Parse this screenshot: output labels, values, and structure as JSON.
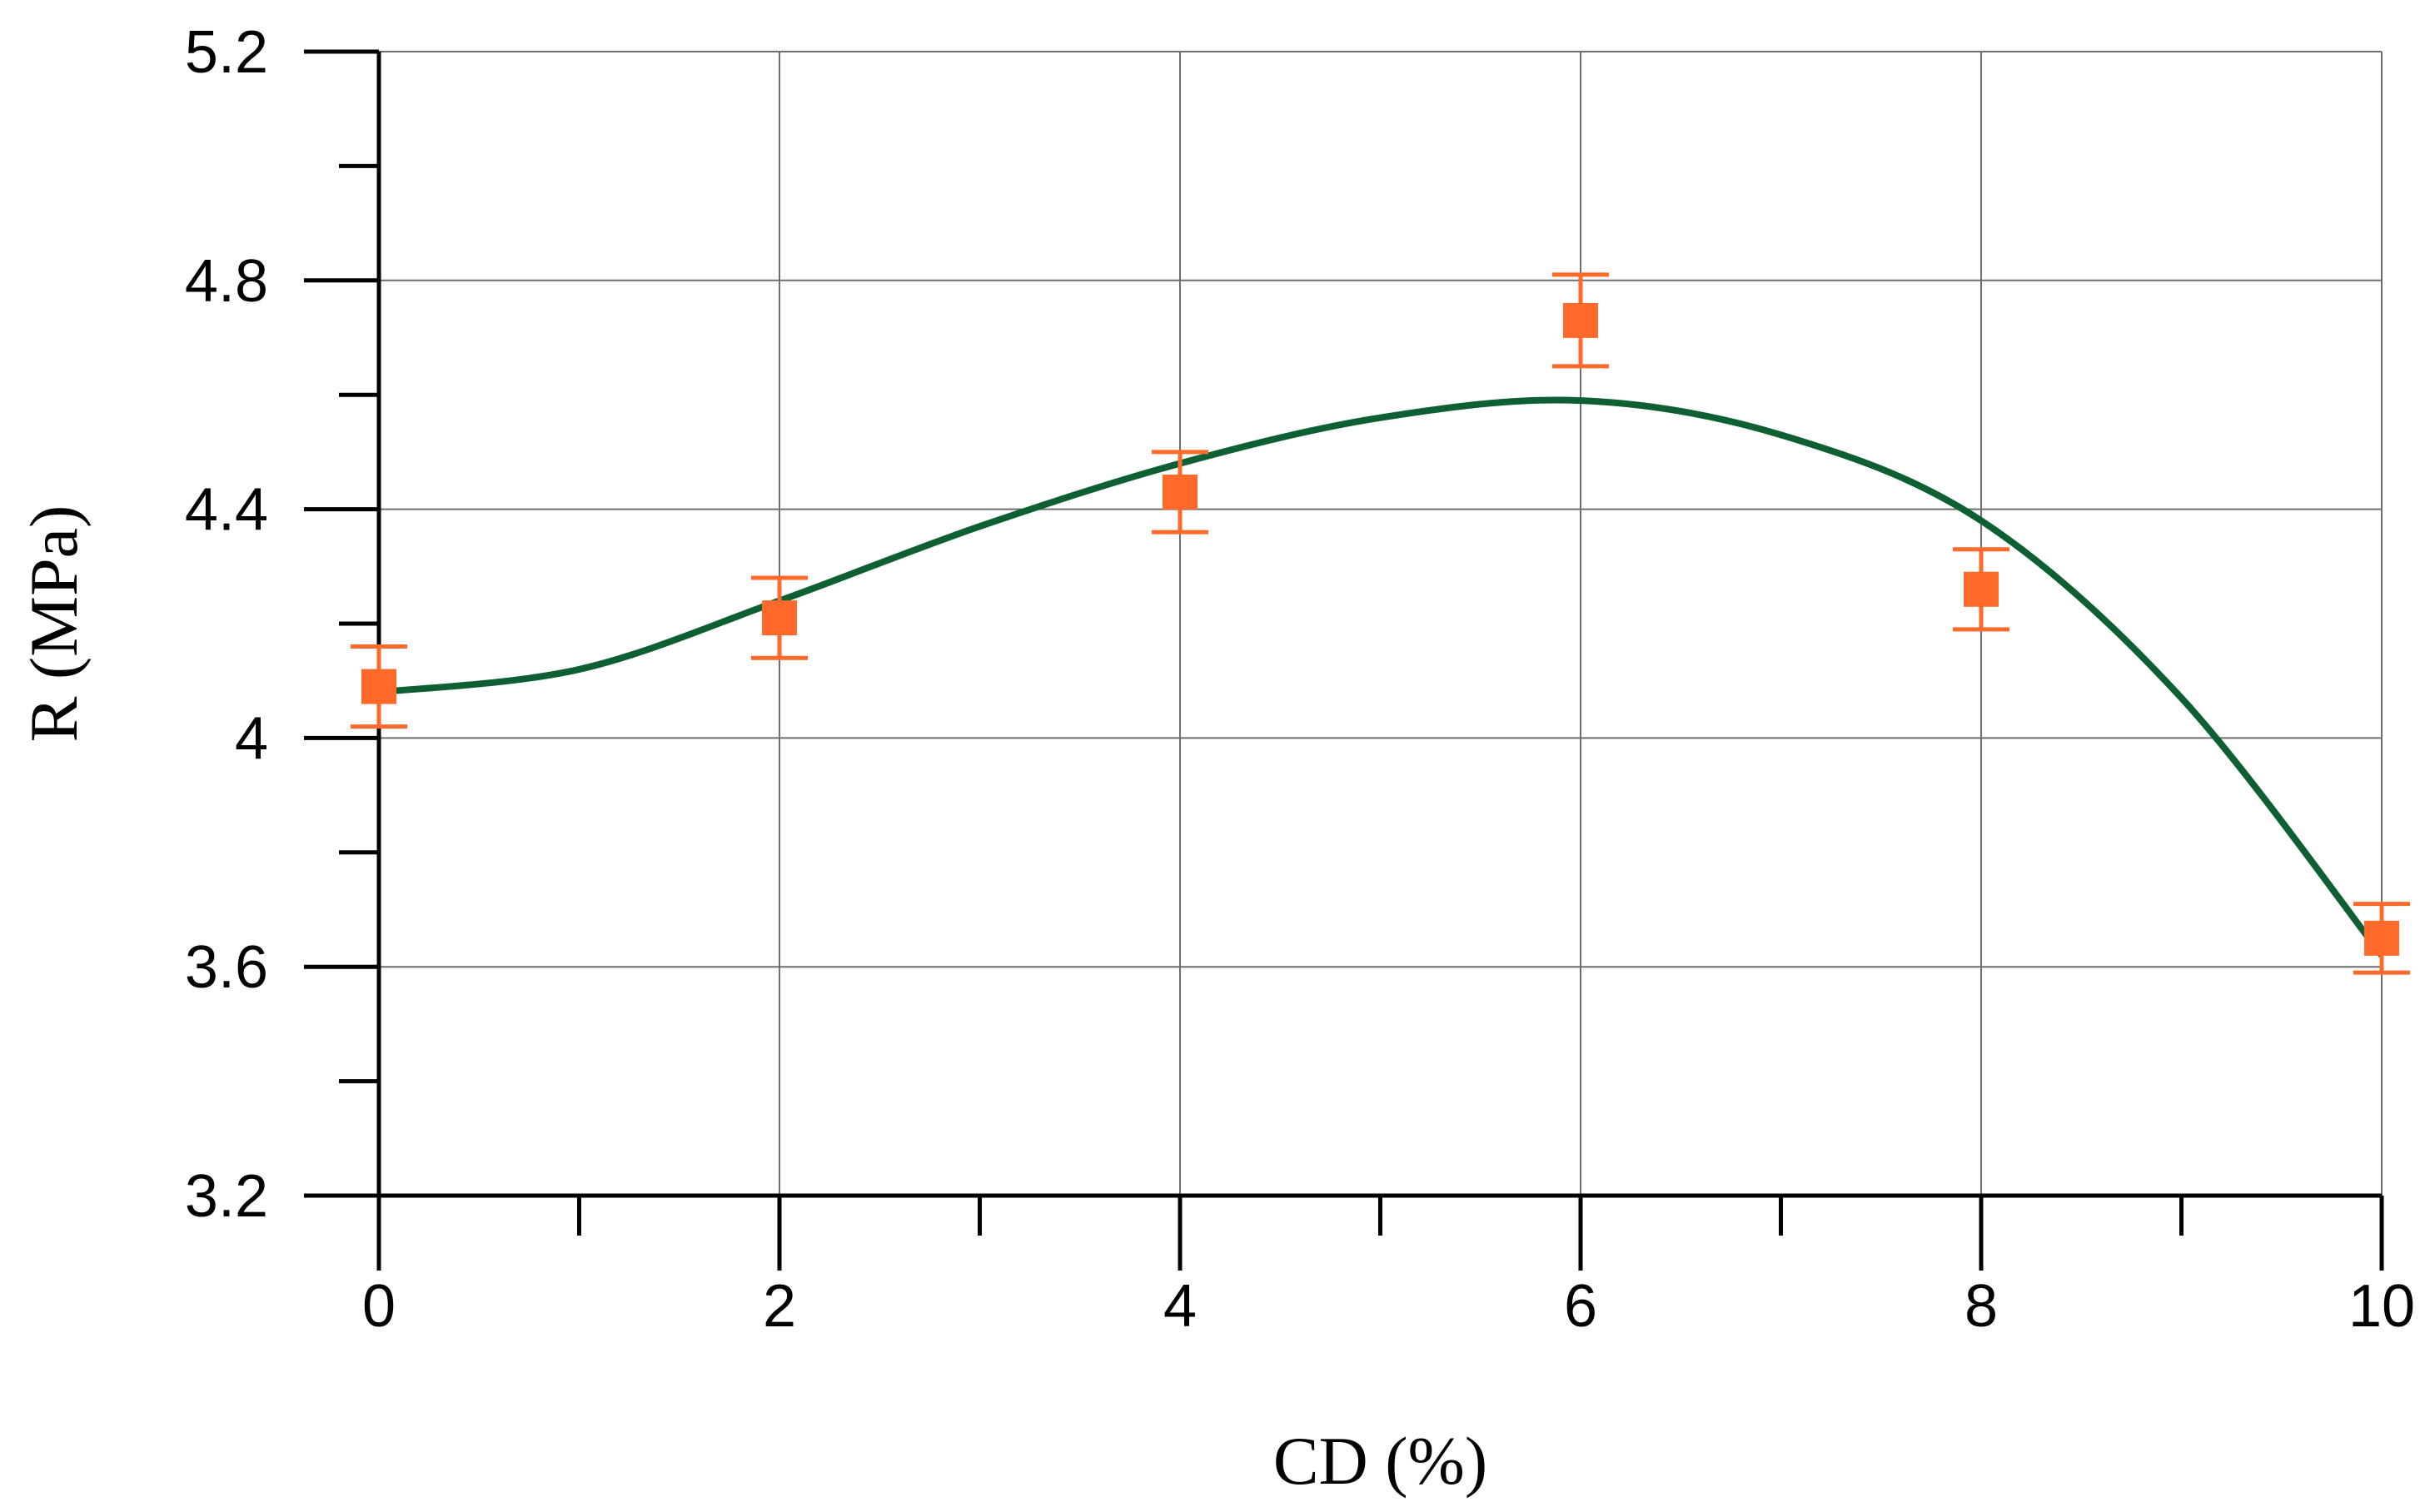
{
  "chart_data": {
    "type": "scatter",
    "xlabel": "CD (%)",
    "ylabel": "R (MPa)",
    "xlim": [
      0,
      10
    ],
    "ylim": [
      3.2,
      5.2
    ],
    "x_ticks": [
      0,
      2,
      4,
      6,
      8,
      10
    ],
    "y_ticks": [
      3.2,
      3.6,
      4,
      4.4,
      4.8,
      5.2
    ],
    "x_tick_labels": [
      "0",
      "2",
      "4",
      "6",
      "8",
      "10"
    ],
    "y_tick_labels": [
      "3.2",
      "3.6",
      "4",
      "4.4",
      "4.8",
      "5.2"
    ],
    "x_minor_step": 1,
    "y_minor_step": 0.2,
    "grid": true,
    "legend": "none",
    "series": [
      {
        "type": "scatter",
        "marker": "square",
        "color": "#FF6A2B",
        "points": [
          {
            "x": 0,
            "y": 4.09,
            "err_low": 4.02,
            "err_high": 4.16
          },
          {
            "x": 2,
            "y": 4.21,
            "err_low": 4.14,
            "err_high": 4.28
          },
          {
            "x": 4,
            "y": 4.43,
            "err_low": 4.36,
            "err_high": 4.5
          },
          {
            "x": 6,
            "y": 4.73,
            "err_low": 4.65,
            "err_high": 4.81
          },
          {
            "x": 8,
            "y": 4.26,
            "err_low": 4.19,
            "err_high": 4.33
          },
          {
            "x": 10,
            "y": 3.65,
            "err_low": 3.59,
            "err_high": 3.71
          }
        ]
      },
      {
        "type": "line",
        "smooth": true,
        "color": "#0E6032",
        "points": [
          {
            "x": 0,
            "y": 4.08
          },
          {
            "x": 1,
            "y": 4.12
          },
          {
            "x": 2,
            "y": 4.24
          },
          {
            "x": 3,
            "y": 4.37
          },
          {
            "x": 4,
            "y": 4.48
          },
          {
            "x": 5,
            "y": 4.56
          },
          {
            "x": 6,
            "y": 4.59
          },
          {
            "x": 7,
            "y": 4.53
          },
          {
            "x": 8,
            "y": 4.38
          },
          {
            "x": 9,
            "y": 4.07
          },
          {
            "x": 10,
            "y": 3.62
          }
        ]
      }
    ]
  }
}
